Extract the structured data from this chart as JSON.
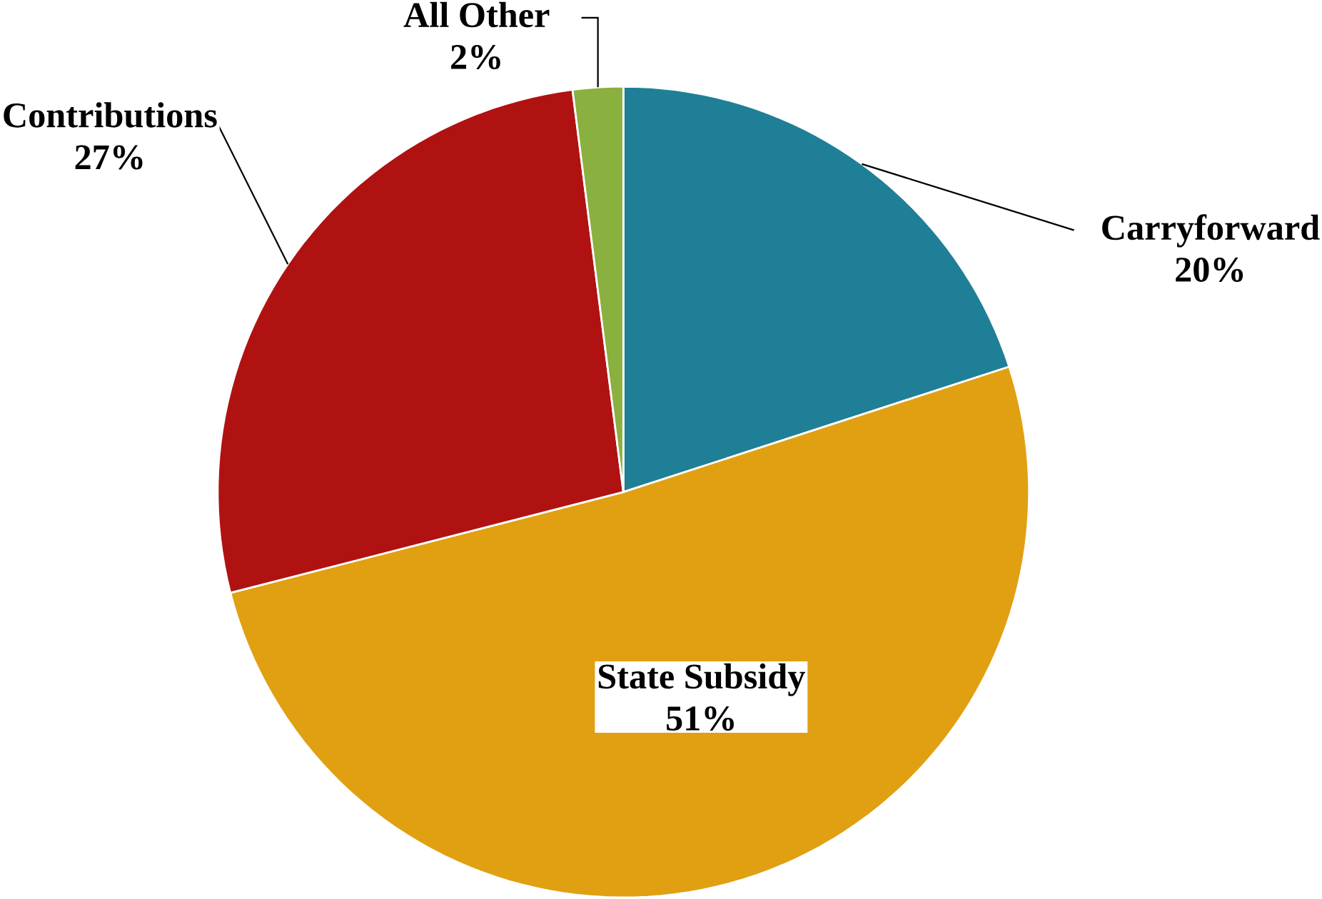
{
  "chart_data": {
    "type": "pie",
    "categories": [
      "Carryforward",
      "State Subsidy",
      "Contributions",
      "All Other"
    ],
    "values": [
      20,
      51,
      27,
      2
    ],
    "colors": [
      "#1f7f96",
      "#e0a012",
      "#b01212",
      "#8ab040"
    ],
    "value_labels": [
      "20%",
      "51%",
      "27%",
      "2%"
    ]
  }
}
